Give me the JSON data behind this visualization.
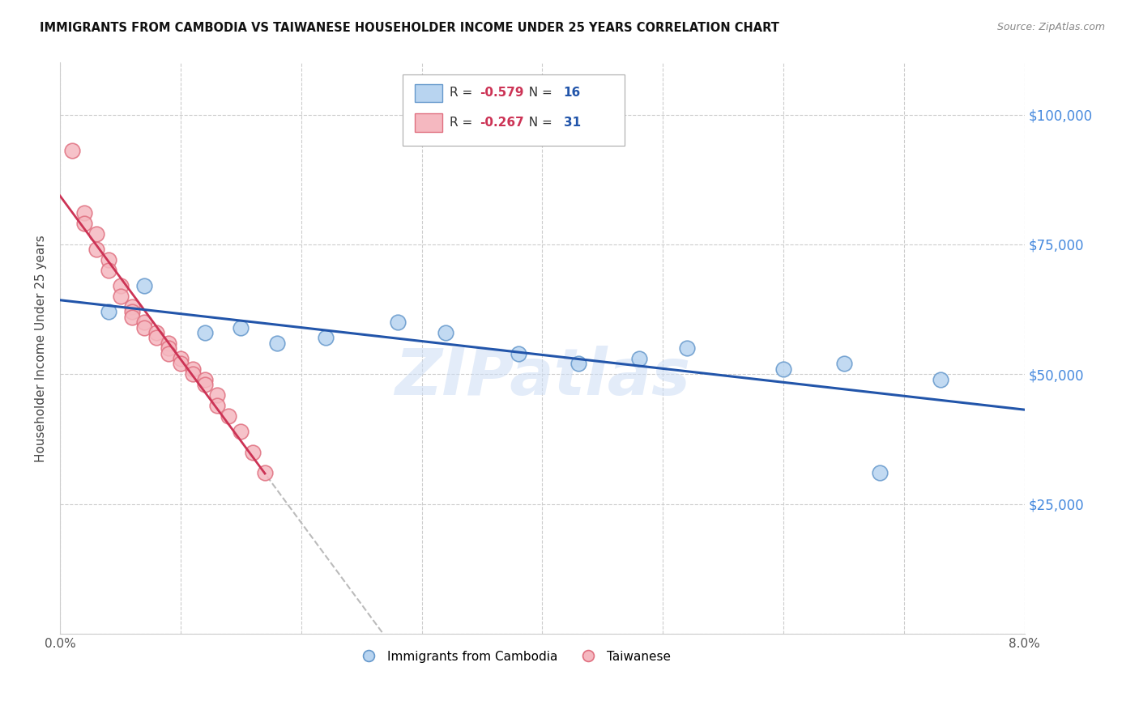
{
  "title": "IMMIGRANTS FROM CAMBODIA VS TAIWANESE HOUSEHOLDER INCOME UNDER 25 YEARS CORRELATION CHART",
  "source": "Source: ZipAtlas.com",
  "ylabel": "Householder Income Under 25 years",
  "xlim": [
    0.0,
    0.08
  ],
  "ylim": [
    0,
    110000
  ],
  "yticks": [
    0,
    25000,
    50000,
    75000,
    100000
  ],
  "xticks": [
    0.0,
    0.01,
    0.02,
    0.03,
    0.04,
    0.05,
    0.06,
    0.07,
    0.08
  ],
  "background_color": "#ffffff",
  "grid_color": "#cccccc",
  "watermark": "ZIPatlas",
  "cambodia": {
    "name": "Immigrants from Cambodia",
    "marker_face": "#b8d4f0",
    "marker_edge": "#6699cc",
    "line_color": "#2255aa",
    "x": [
      0.004,
      0.007,
      0.012,
      0.015,
      0.018,
      0.022,
      0.028,
      0.032,
      0.038,
      0.043,
      0.048,
      0.052,
      0.06,
      0.065,
      0.068,
      0.073
    ],
    "y": [
      62000,
      67000,
      58000,
      59000,
      56000,
      57000,
      60000,
      58000,
      54000,
      52000,
      53000,
      55000,
      51000,
      52000,
      31000,
      49000
    ]
  },
  "taiwanese": {
    "name": "Taiwanese",
    "marker_face": "#f5b8c0",
    "marker_edge": "#e07080",
    "line_color": "#cc3355",
    "x": [
      0.001,
      0.002,
      0.002,
      0.003,
      0.003,
      0.004,
      0.004,
      0.005,
      0.005,
      0.006,
      0.006,
      0.006,
      0.007,
      0.007,
      0.008,
      0.008,
      0.009,
      0.009,
      0.009,
      0.01,
      0.01,
      0.011,
      0.011,
      0.012,
      0.012,
      0.013,
      0.013,
      0.014,
      0.015,
      0.016,
      0.017
    ],
    "y": [
      93000,
      81000,
      79000,
      77000,
      74000,
      72000,
      70000,
      67000,
      65000,
      63000,
      62000,
      61000,
      60000,
      59000,
      58000,
      57000,
      56000,
      55000,
      54000,
      53000,
      52000,
      51000,
      50000,
      49000,
      48000,
      46000,
      44000,
      42000,
      39000,
      35000,
      31000
    ]
  },
  "legend": {
    "R1": "-0.579",
    "N1": "16",
    "R2": "-0.267",
    "N2": "31",
    "color1_face": "#b8d4f0",
    "color1_edge": "#6699cc",
    "color2_face": "#f5b8c0",
    "color2_edge": "#e07080"
  }
}
